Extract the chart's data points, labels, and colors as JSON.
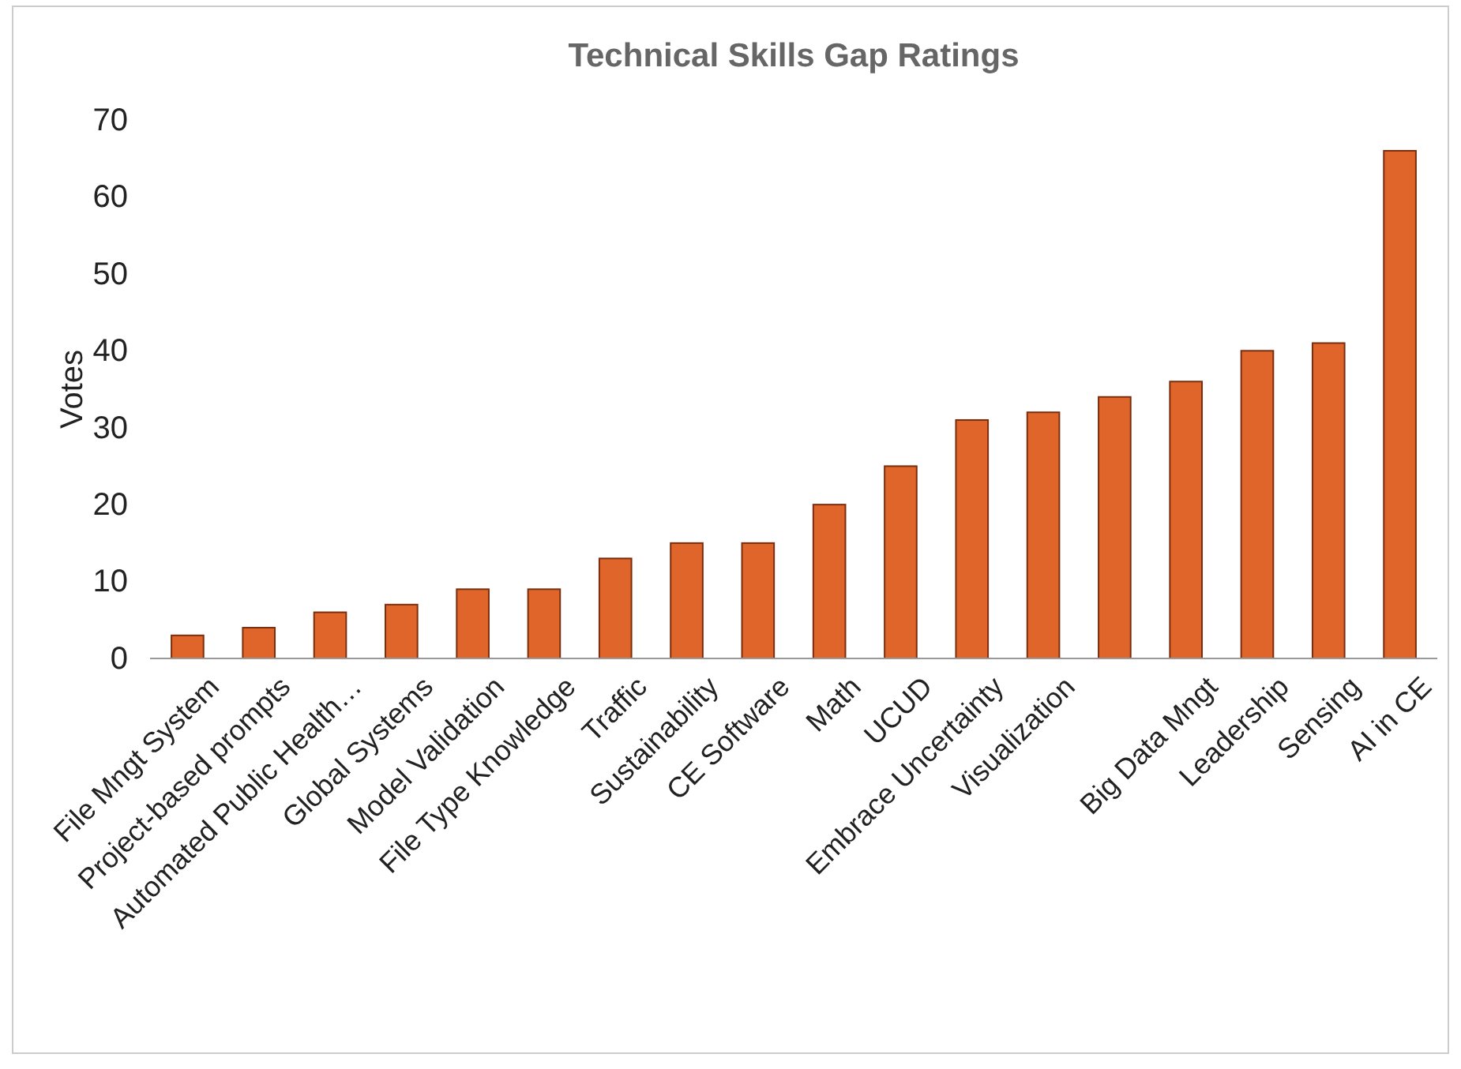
{
  "chart_data": {
    "type": "bar",
    "title": "Technical Skills Gap Ratings",
    "ylabel": "Votes",
    "categories": [
      "File Mngt System",
      "Project-based prompts",
      "Automated Public Health…",
      "Global Systems",
      "Model Validation",
      "File Type Knowledge",
      "Traffic",
      "Sustainability",
      "CE Software",
      "Math",
      "UCUD",
      "Embrace Uncertainty",
      "Visualization",
      null,
      "Big Data Mngt",
      "Leadership",
      "Sensing",
      "AI in CE"
    ],
    "values": [
      3,
      4,
      6,
      7,
      9,
      9,
      13,
      15,
      15,
      20,
      25,
      31,
      32,
      34,
      36,
      40,
      41,
      66
    ],
    "color": "#e0652a",
    "ylim": [
      0,
      70
    ],
    "yticks": [
      0,
      10,
      20,
      30,
      40,
      50,
      60,
      70
    ]
  }
}
